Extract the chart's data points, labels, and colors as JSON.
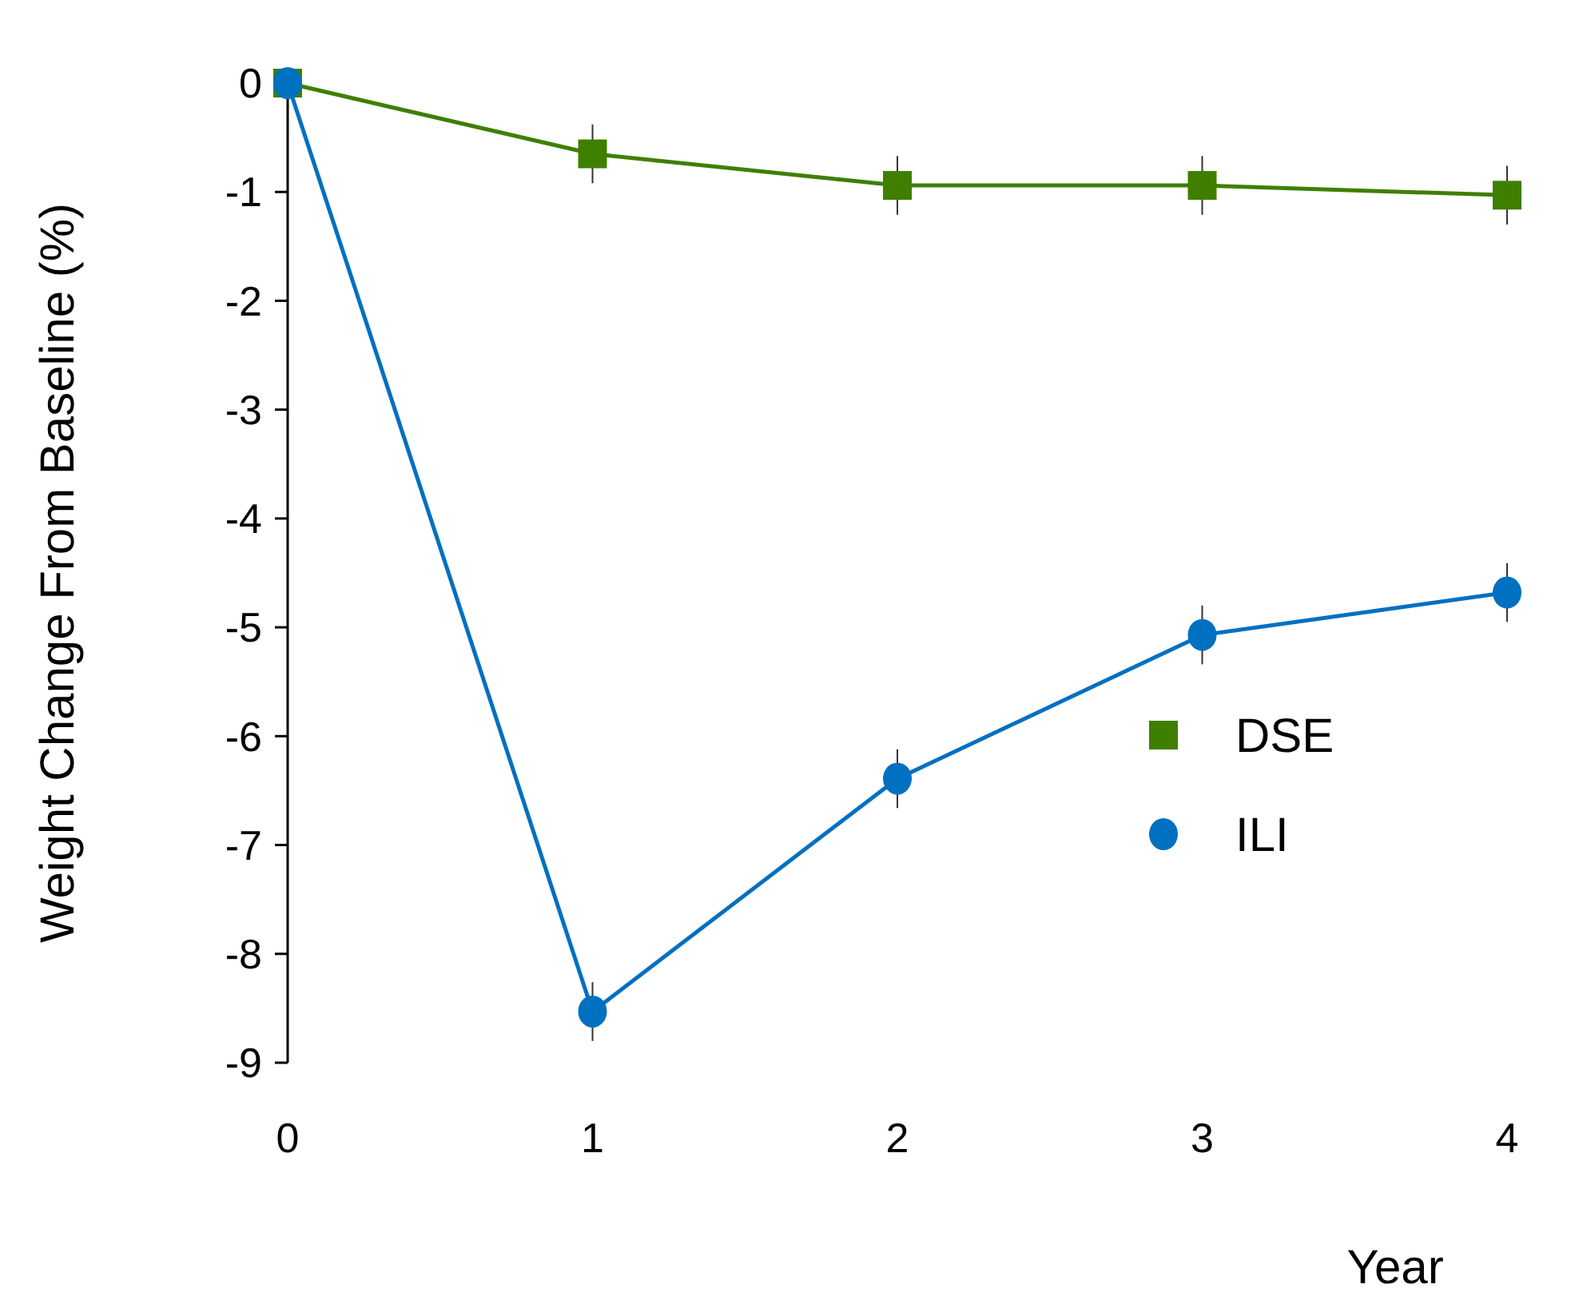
{
  "chart_data": {
    "type": "line",
    "xlabel": "Year",
    "ylabel": "Weight Change From Baseline (%)",
    "x": [
      0,
      1,
      2,
      3,
      4
    ],
    "xlim": [
      0,
      4
    ],
    "xticks": [
      0,
      1,
      2,
      3,
      4
    ],
    "ylim": [
      -9,
      0
    ],
    "yticks": [
      0,
      -1,
      -2,
      -3,
      -4,
      -5,
      -6,
      -7,
      -8,
      -9
    ],
    "series": [
      {
        "name": "DSE",
        "color": "#3f7f00",
        "marker": "square",
        "values": [
          0,
          -0.65,
          -0.94,
          -0.94,
          -1.03
        ],
        "errors": [
          null,
          0.27,
          0.27,
          0.27,
          0.27
        ]
      },
      {
        "name": "ILI",
        "color": "#0070c0",
        "marker": "circle",
        "values": [
          0,
          -8.53,
          -6.39,
          -5.07,
          -4.68
        ],
        "errors": [
          null,
          0.27,
          0.27,
          0.27,
          0.27
        ]
      }
    ],
    "legend": "right",
    "grid": false
  }
}
